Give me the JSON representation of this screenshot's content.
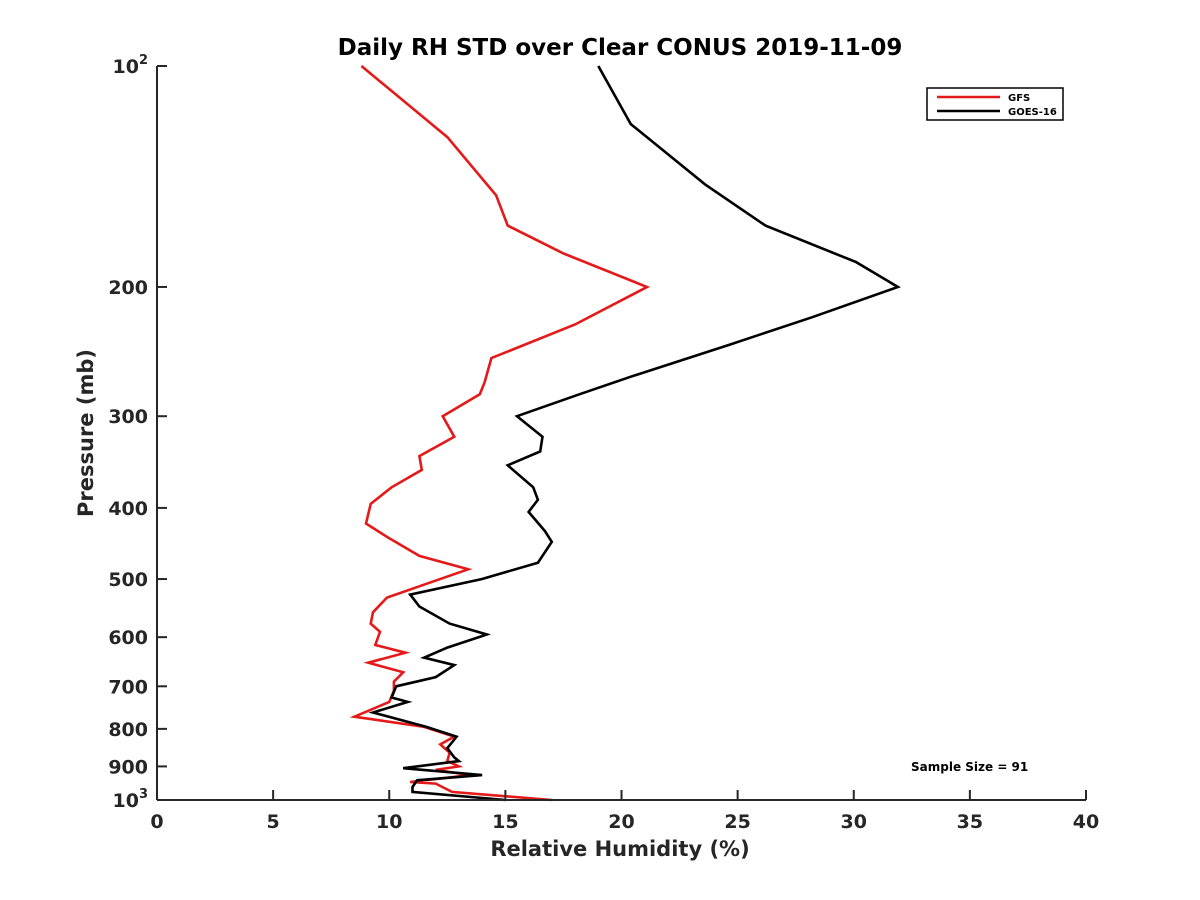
{
  "chart_data": {
    "type": "line",
    "title": "Daily RH STD over Clear CONUS 2019-11-09",
    "xlabel": "Relative Humidity (%)",
    "ylabel": "Pressure (mb)",
    "xlim": [
      0,
      40
    ],
    "ylim": [
      100,
      1000
    ],
    "y_scale": "log",
    "y_reversed": true,
    "grid": false,
    "x_ticks": [
      {
        "value": 0,
        "label": "0"
      },
      {
        "value": 5,
        "label": "5"
      },
      {
        "value": 10,
        "label": "10"
      },
      {
        "value": 15,
        "label": "15"
      },
      {
        "value": 20,
        "label": "20"
      },
      {
        "value": 25,
        "label": "25"
      },
      {
        "value": 30,
        "label": "30"
      },
      {
        "value": 35,
        "label": "35"
      },
      {
        "value": 40,
        "label": "40"
      }
    ],
    "y_ticks": [
      {
        "value": 100,
        "label": "10",
        "sup": "2"
      },
      {
        "value": 200,
        "label": "200"
      },
      {
        "value": 300,
        "label": "300"
      },
      {
        "value": 400,
        "label": "400"
      },
      {
        "value": 500,
        "label": "500"
      },
      {
        "value": 600,
        "label": "600"
      },
      {
        "value": 700,
        "label": "700"
      },
      {
        "value": 800,
        "label": "800"
      },
      {
        "value": 900,
        "label": "900"
      },
      {
        "value": 1000,
        "label": "10",
        "sup": "3"
      }
    ],
    "legend": {
      "placement": "top-right",
      "entries": [
        {
          "name": "GFS",
          "color": "#e41a1a"
        },
        {
          "name": "GOES-16",
          "color": "#000000"
        }
      ]
    },
    "annotation": "Sample Size = 91",
    "series": [
      {
        "name": "GFS",
        "color": "#e41a1a",
        "points": [
          [
            8.8,
            100
          ],
          [
            12.5,
            125
          ],
          [
            14.6,
            150
          ],
          [
            15.1,
            165
          ],
          [
            17.5,
            180
          ],
          [
            21.1,
            200
          ],
          [
            18.0,
            225
          ],
          [
            14.4,
            250
          ],
          [
            14.1,
            270
          ],
          [
            13.9,
            280
          ],
          [
            12.3,
            300
          ],
          [
            12.8,
            320
          ],
          [
            11.3,
            340
          ],
          [
            11.4,
            355
          ],
          [
            10.1,
            375
          ],
          [
            9.2,
            395
          ],
          [
            9.0,
            420
          ],
          [
            10.0,
            440
          ],
          [
            11.3,
            465
          ],
          [
            13.4,
            485
          ],
          [
            11.8,
            505
          ],
          [
            9.9,
            530
          ],
          [
            9.3,
            555
          ],
          [
            9.2,
            575
          ],
          [
            9.6,
            590
          ],
          [
            9.4,
            615
          ],
          [
            10.7,
            630
          ],
          [
            9.1,
            650
          ],
          [
            10.6,
            670
          ],
          [
            10.2,
            690
          ],
          [
            10.2,
            710
          ],
          [
            10.0,
            735
          ],
          [
            8.5,
            770
          ],
          [
            11.5,
            795
          ],
          [
            12.8,
            820
          ],
          [
            12.2,
            840
          ],
          [
            12.6,
            862
          ],
          [
            12.5,
            885
          ],
          [
            13.0,
            900
          ],
          [
            12.0,
            910
          ],
          [
            13.5,
            925
          ],
          [
            10.9,
            945
          ],
          [
            12.0,
            950
          ],
          [
            12.7,
            975
          ],
          [
            17.0,
            1000
          ]
        ]
      },
      {
        "name": "GOES-16",
        "color": "#000000",
        "points": [
          [
            19.0,
            100
          ],
          [
            20.4,
            120
          ],
          [
            23.6,
            145
          ],
          [
            26.2,
            165
          ],
          [
            30.1,
            185
          ],
          [
            31.9,
            200
          ],
          [
            28.2,
            220
          ],
          [
            24.6,
            240
          ],
          [
            20.4,
            265
          ],
          [
            18.2,
            280
          ],
          [
            15.5,
            300
          ],
          [
            16.6,
            320
          ],
          [
            16.5,
            335
          ],
          [
            15.1,
            350
          ],
          [
            16.2,
            375
          ],
          [
            16.4,
            390
          ],
          [
            16.0,
            405
          ],
          [
            16.7,
            430
          ],
          [
            17.0,
            445
          ],
          [
            16.4,
            475
          ],
          [
            14.0,
            500
          ],
          [
            10.9,
            525
          ],
          [
            11.3,
            545
          ],
          [
            12.6,
            575
          ],
          [
            14.2,
            595
          ],
          [
            12.5,
            620
          ],
          [
            11.5,
            640
          ],
          [
            12.8,
            655
          ],
          [
            12.0,
            680
          ],
          [
            10.3,
            700
          ],
          [
            10.1,
            725
          ],
          [
            10.8,
            735
          ],
          [
            9.3,
            760
          ],
          [
            11.6,
            795
          ],
          [
            12.9,
            820
          ],
          [
            12.5,
            850
          ],
          [
            12.8,
            875
          ],
          [
            13.0,
            885
          ],
          [
            10.6,
            905
          ],
          [
            14.0,
            925
          ],
          [
            11.2,
            940
          ],
          [
            11.0,
            960
          ],
          [
            11.0,
            975
          ],
          [
            15.0,
            1000
          ]
        ]
      }
    ]
  }
}
